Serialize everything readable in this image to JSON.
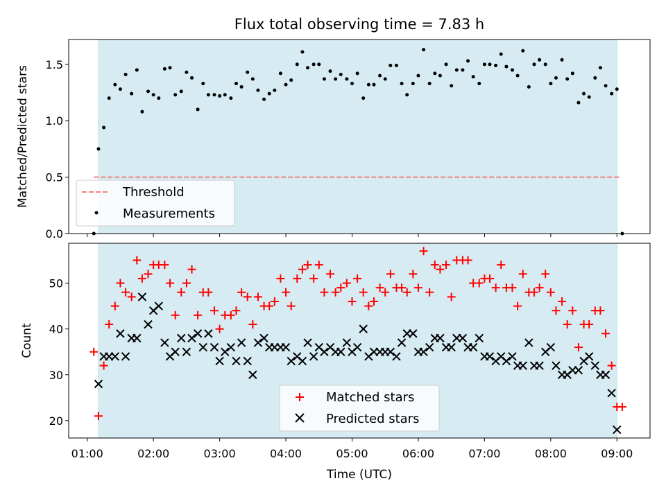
{
  "title": "Flux total observing time = 7.83 h",
  "colors": {
    "band": "#add8e6",
    "threshold": "#f08080",
    "measurements": "#000000",
    "matched": "#ff0000",
    "predicted": "#000000"
  },
  "chart_data": [
    {
      "type": "scatter",
      "ylabel": "Matched/Predicted stars",
      "xlabel": "",
      "ylim": [
        0,
        1.72
      ],
      "yticks": [
        "0.0",
        "0.5",
        "1.0",
        "1.5"
      ],
      "shaded_band": {
        "x": [
          1.17,
          9.0
        ]
      },
      "threshold": {
        "name": "Threshold",
        "y": 0.5,
        "x": [
          1.1,
          9.05
        ]
      },
      "legend": {
        "location": "lower-left",
        "entries": [
          "Threshold",
          "Measurements"
        ]
      },
      "series": [
        {
          "name": "Measurements",
          "x": [
            1.1,
            1.17,
            1.25,
            1.33,
            1.42,
            1.5,
            1.58,
            1.67,
            1.75,
            1.83,
            1.92,
            2.0,
            2.08,
            2.17,
            2.25,
            2.33,
            2.42,
            2.5,
            2.58,
            2.67,
            2.75,
            2.83,
            2.92,
            3.0,
            3.08,
            3.17,
            3.25,
            3.33,
            3.42,
            3.5,
            3.58,
            3.67,
            3.75,
            3.83,
            3.92,
            4.0,
            4.08,
            4.17,
            4.25,
            4.33,
            4.42,
            4.5,
            4.58,
            4.67,
            4.75,
            4.83,
            4.92,
            5.0,
            5.08,
            5.17,
            5.25,
            5.33,
            5.42,
            5.5,
            5.58,
            5.67,
            5.75,
            5.83,
            5.92,
            6.0,
            6.08,
            6.17,
            6.25,
            6.33,
            6.42,
            6.5,
            6.58,
            6.67,
            6.75,
            6.83,
            6.92,
            7.0,
            7.08,
            7.17,
            7.25,
            7.33,
            7.42,
            7.5,
            7.58,
            7.67,
            7.75,
            7.83,
            7.92,
            8.0,
            8.08,
            8.17,
            8.25,
            8.33,
            8.42,
            8.5,
            8.58,
            8.67,
            8.75,
            8.83,
            8.92,
            9.0,
            9.08
          ],
          "y": [
            0.0,
            0.75,
            0.94,
            1.2,
            1.32,
            1.28,
            1.41,
            1.24,
            1.45,
            1.08,
            1.26,
            1.23,
            1.2,
            1.46,
            1.47,
            1.23,
            1.26,
            1.43,
            1.38,
            1.1,
            1.33,
            1.23,
            1.23,
            1.22,
            1.23,
            1.2,
            1.33,
            1.3,
            1.43,
            1.37,
            1.27,
            1.19,
            1.24,
            1.27,
            1.42,
            1.32,
            1.36,
            1.5,
            1.61,
            1.47,
            1.5,
            1.5,
            1.37,
            1.44,
            1.37,
            1.41,
            1.37,
            1.33,
            1.42,
            1.2,
            1.32,
            1.32,
            1.4,
            1.37,
            1.49,
            1.49,
            1.33,
            1.23,
            1.33,
            1.4,
            1.63,
            1.33,
            1.42,
            1.4,
            1.5,
            1.31,
            1.45,
            1.45,
            1.53,
            1.39,
            1.33,
            1.5,
            1.5,
            1.49,
            1.59,
            1.48,
            1.45,
            1.4,
            1.62,
            1.3,
            1.5,
            1.54,
            1.5,
            1.33,
            1.38,
            1.54,
            1.37,
            1.42,
            1.16,
            1.24,
            1.21,
            1.38,
            1.47,
            1.31,
            1.24,
            1.28,
            0.0
          ]
        }
      ]
    },
    {
      "type": "scatter",
      "ylabel": "Count",
      "xlabel": "Time (UTC)",
      "xlim": [
        0.72,
        9.5
      ],
      "ylim": [
        16.2,
        58.7
      ],
      "yticks": [
        "20",
        "30",
        "40",
        "50"
      ],
      "xticks": [
        "01:00",
        "02:00",
        "03:00",
        "04:00",
        "05:00",
        "06:00",
        "07:00",
        "08:00",
        "09:00"
      ],
      "shaded_band": {
        "x": [
          1.17,
          9.0
        ]
      },
      "legend": {
        "location": "lower-center",
        "entries": [
          "Matched stars",
          "Predicted stars"
        ]
      },
      "series": [
        {
          "name": "Matched stars",
          "x": [
            1.1,
            1.17,
            1.25,
            1.33,
            1.42,
            1.5,
            1.58,
            1.67,
            1.75,
            1.83,
            1.92,
            2.0,
            2.08,
            2.17,
            2.25,
            2.33,
            2.42,
            2.5,
            2.58,
            2.67,
            2.75,
            2.83,
            2.92,
            3.0,
            3.08,
            3.17,
            3.25,
            3.33,
            3.42,
            3.5,
            3.58,
            3.67,
            3.75,
            3.83,
            3.92,
            4.0,
            4.08,
            4.17,
            4.25,
            4.33,
            4.42,
            4.5,
            4.58,
            4.67,
            4.75,
            4.83,
            4.92,
            5.0,
            5.08,
            5.17,
            5.25,
            5.33,
            5.42,
            5.5,
            5.58,
            5.67,
            5.75,
            5.83,
            5.92,
            6.0,
            6.08,
            6.17,
            6.25,
            6.33,
            6.42,
            6.5,
            6.58,
            6.67,
            6.75,
            6.83,
            6.92,
            7.0,
            7.08,
            7.17,
            7.25,
            7.33,
            7.42,
            7.5,
            7.58,
            7.67,
            7.75,
            7.83,
            7.92,
            8.0,
            8.08,
            8.17,
            8.25,
            8.33,
            8.42,
            8.5,
            8.58,
            8.67,
            8.75,
            8.83,
            8.92,
            9.0,
            9.08
          ],
          "y": [
            35,
            21,
            32,
            41,
            45,
            50,
            48,
            47,
            55,
            51,
            52,
            54,
            54,
            54,
            50,
            43,
            48,
            50,
            53,
            43,
            48,
            48,
            44,
            40,
            43,
            43,
            44,
            48,
            47,
            41,
            47,
            45,
            45,
            46,
            51,
            48,
            45,
            51,
            53,
            54,
            51,
            54,
            48,
            52,
            48,
            49,
            50,
            46,
            51,
            48,
            45,
            46,
            49,
            48,
            52,
            49,
            49,
            48,
            52,
            49,
            57,
            48,
            54,
            53,
            54,
            47,
            55,
            55,
            55,
            50,
            50,
            51,
            51,
            49,
            54,
            49,
            49,
            45,
            52,
            48,
            48,
            49,
            52,
            48,
            44,
            46,
            41,
            44,
            36,
            41,
            41,
            44,
            44,
            39,
            32,
            23,
            23
          ]
        },
        {
          "name": "Predicted stars",
          "x": [
            1.17,
            1.25,
            1.33,
            1.42,
            1.5,
            1.58,
            1.67,
            1.75,
            1.83,
            1.92,
            2.0,
            2.08,
            2.17,
            2.25,
            2.33,
            2.42,
            2.5,
            2.58,
            2.67,
            2.75,
            2.83,
            2.92,
            3.0,
            3.08,
            3.17,
            3.25,
            3.33,
            3.42,
            3.5,
            3.58,
            3.67,
            3.75,
            3.83,
            3.92,
            4.0,
            4.08,
            4.17,
            4.25,
            4.33,
            4.42,
            4.5,
            4.58,
            4.67,
            4.75,
            4.83,
            4.92,
            5.0,
            5.08,
            5.17,
            5.25,
            5.33,
            5.42,
            5.5,
            5.58,
            5.67,
            5.75,
            5.83,
            5.92,
            6.0,
            6.08,
            6.17,
            6.25,
            6.33,
            6.42,
            6.5,
            6.58,
            6.67,
            6.75,
            6.83,
            6.92,
            7.0,
            7.08,
            7.17,
            7.25,
            7.33,
            7.42,
            7.5,
            7.58,
            7.67,
            7.75,
            7.83,
            7.92,
            8.0,
            8.08,
            8.17,
            8.25,
            8.33,
            8.42,
            8.5,
            8.58,
            8.67,
            8.75,
            8.83,
            8.92,
            9.0
          ],
          "y": [
            28,
            34,
            34,
            34,
            39,
            34,
            38,
            38,
            47,
            41,
            44,
            45,
            37,
            34,
            35,
            38,
            35,
            38,
            39,
            36,
            39,
            36,
            33,
            35,
            36,
            33,
            37,
            33,
            30,
            37,
            38,
            36,
            36,
            36,
            36,
            33,
            34,
            33,
            37,
            34,
            36,
            35,
            36,
            35,
            35,
            37,
            35,
            36,
            40,
            34,
            35,
            35,
            35,
            35,
            34,
            37,
            39,
            39,
            35,
            35,
            36,
            38,
            38,
            36,
            36,
            38,
            38,
            36,
            36,
            38,
            34,
            34,
            33,
            34,
            33,
            34,
            32,
            32,
            37,
            32,
            32,
            35,
            36,
            32,
            30,
            30,
            31,
            31,
            33,
            34,
            32,
            30,
            30,
            26,
            18
          ]
        }
      ]
    }
  ]
}
